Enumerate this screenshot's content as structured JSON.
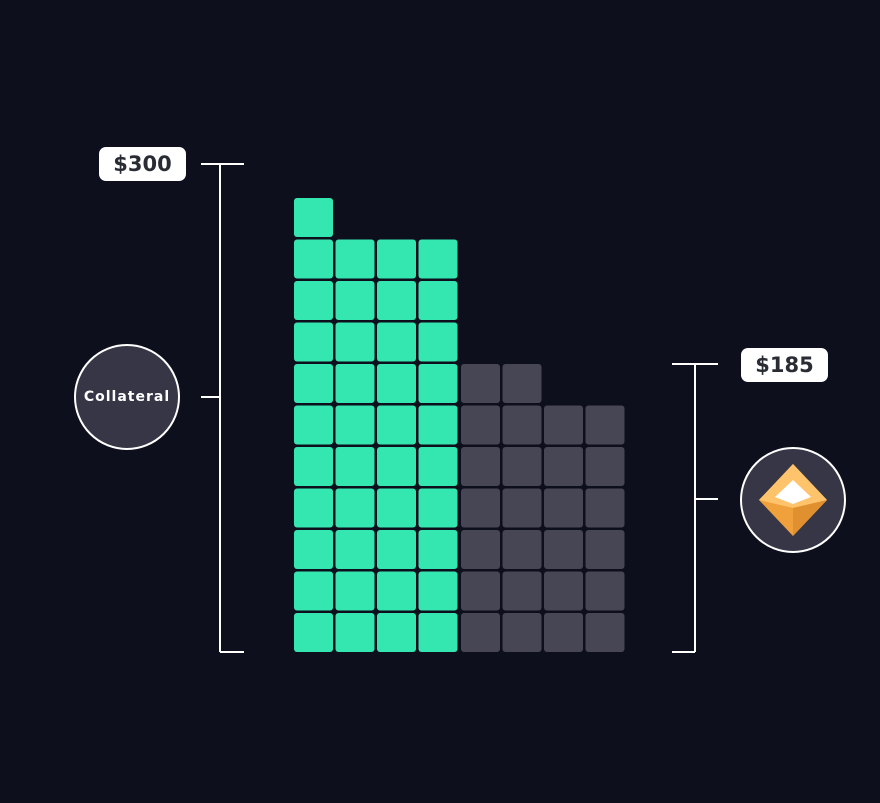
{
  "collateral": {
    "value_label": "$300",
    "badge_label": "Collateral",
    "columns": [
      11,
      10,
      10,
      10
    ],
    "color": "#34e7b0"
  },
  "loan": {
    "value_label": "$185",
    "badge_icon": "token-diamond-icon",
    "columns": [
      7,
      7,
      6,
      6
    ],
    "color": "#474655"
  },
  "colors": {
    "background": "#0d0f1d",
    "bracket": "#ffffff",
    "badge_fill": "#363646",
    "diamond_light": "#ffc36b",
    "diamond_dark": "#f0a13c",
    "diamond_top": "#ffffff"
  }
}
